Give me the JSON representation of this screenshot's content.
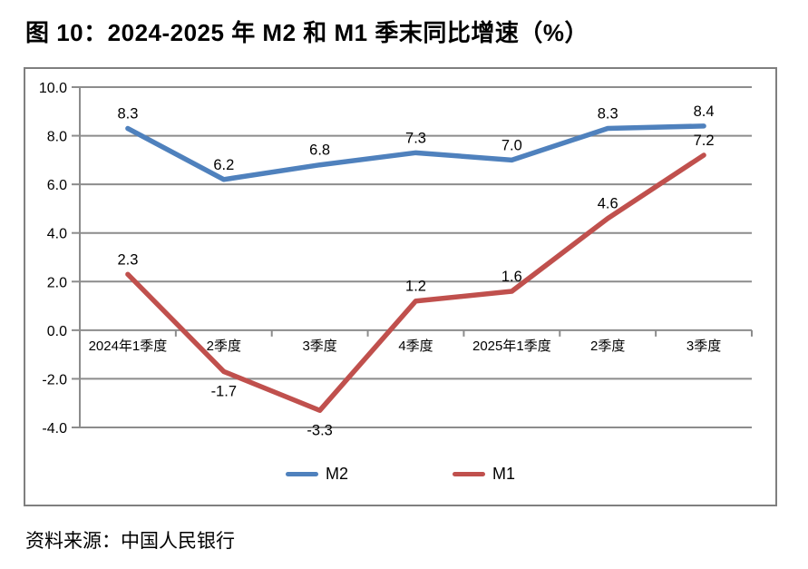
{
  "title": "图 10：2024-2025 年 M2 和 M1 季末同比增速（%）",
  "source": "资料来源：中国人民银行",
  "colors": {
    "m2_line": "#4F81BD",
    "m1_line": "#C0504D",
    "gridline": "#8C8C8C",
    "axis": "#8C8C8C",
    "border": "#7F7F7F",
    "label_text": "#000000"
  },
  "legend": {
    "position": "bottom",
    "items": [
      {
        "name": "M2",
        "color": "#4F81BD"
      },
      {
        "name": "M1",
        "color": "#C0504D"
      }
    ]
  },
  "chart_data": {
    "type": "line",
    "title": "图 10：2024-2025 年 M2 和 M1 季末同比增速（%）",
    "categories": [
      "2024年1季度",
      "2季度",
      "3季度",
      "4季度",
      "2025年1季度",
      "2季度",
      "3季度"
    ],
    "series": [
      {
        "name": "M2",
        "color": "#4F81BD",
        "values": [
          8.3,
          6.2,
          6.8,
          7.3,
          7.0,
          8.3,
          8.4
        ]
      },
      {
        "name": "M1",
        "color": "#C0504D",
        "values": [
          2.3,
          -1.7,
          -3.3,
          1.2,
          1.6,
          4.6,
          7.2
        ]
      }
    ],
    "ylim": [
      -4.0,
      10.0
    ],
    "ytick_step": 2.0,
    "ytick_labels": [
      "10.0",
      "8.0",
      "6.0",
      "4.0",
      "2.0",
      "0.0",
      "-2.0",
      "-4.0"
    ],
    "grid": true,
    "data_labels": true,
    "legend_position": "bottom",
    "xlabel": "",
    "ylabel": ""
  }
}
